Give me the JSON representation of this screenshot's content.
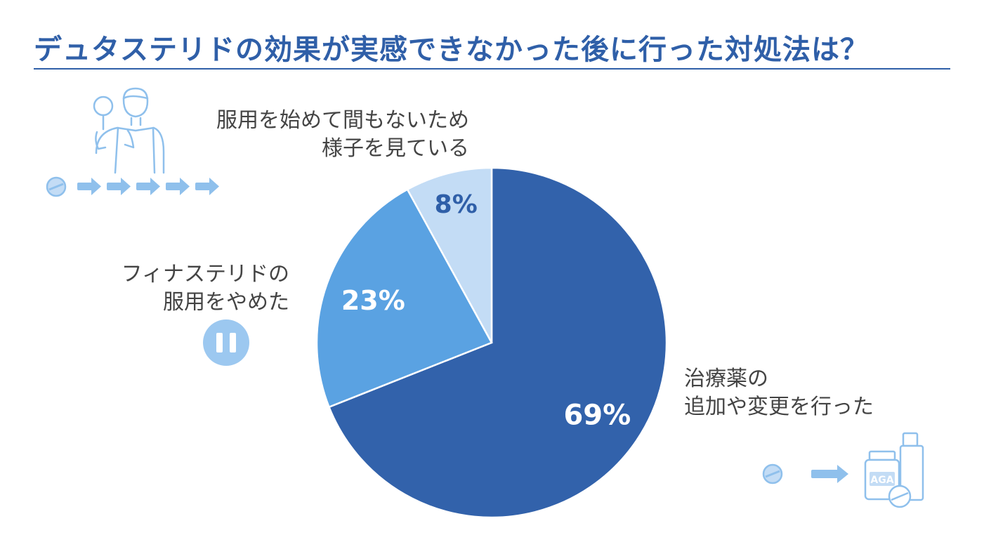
{
  "header": {
    "title": "デュタステリドの効果が実感できなかった後に行った対処法は？"
  },
  "chart_data": {
    "type": "pie",
    "title": "デュタステリドの効果が実感できなかった後に行った対処法は？",
    "slices": [
      {
        "label_lines": [
          "治療薬の",
          "追加や変更を行った"
        ],
        "value": 69,
        "value_label": "69%",
        "color": "#3262ab"
      },
      {
        "label_lines": [
          "フィナステリドの",
          "服用をやめた"
        ],
        "value": 23,
        "value_label": "23%",
        "color": "#5aa2e2"
      },
      {
        "label_lines": [
          "服用を始めて間もないため",
          "様子を見ている"
        ],
        "value": 8,
        "value_label": "8%",
        "color": "#c3dcf5"
      }
    ],
    "start_angle_deg": 0,
    "direction": "clockwise",
    "legend": "none"
  },
  "icons": {
    "stage_icon_1": "man-with-magnifier-icon",
    "stage_icon_2": "pause-icon",
    "stage_icon_3": "aga-medicine-bottles-icon",
    "pill": "pill-icon",
    "arrow": "arrow-right-icon",
    "bottle_text": "AGA"
  },
  "colors": {
    "accent": "#2f5fa8",
    "icon_light": "#9cc8f0"
  }
}
